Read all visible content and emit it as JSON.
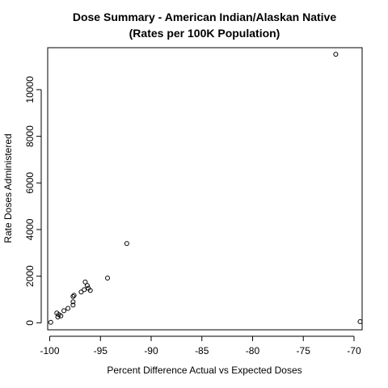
{
  "chart_data": {
    "type": "scatter",
    "title": "Dose Summary - American Indian/Alaskan Native",
    "subtitle": "(Rates per 100K Population)",
    "xlabel": "Percent Difference Actual vs Expected Doses",
    "ylabel": "Rate Doses Administered",
    "xlim": [
      -100.2,
      -69.2
    ],
    "ylim": [
      -300,
      11800
    ],
    "x_ticks": [
      -100,
      -95,
      -90,
      -85,
      -80,
      -75,
      -70
    ],
    "x_tick_labels": [
      "-100",
      "-95",
      "-90",
      "-85",
      "-80",
      "-75",
      "-70"
    ],
    "y_ticks": [
      0,
      2000,
      4000,
      6000,
      8000,
      10000
    ],
    "y_tick_labels": [
      "0",
      "2000",
      "4000",
      "6000",
      "8000",
      "10000"
    ],
    "grid": false,
    "legend": "none",
    "points": [
      {
        "x": -99.9,
        "y": 20
      },
      {
        "x": -99.3,
        "y": 420
      },
      {
        "x": -99.2,
        "y": 250
      },
      {
        "x": -99.1,
        "y": 350
      },
      {
        "x": -98.9,
        "y": 300
      },
      {
        "x": -98.6,
        "y": 520
      },
      {
        "x": -98.2,
        "y": 620
      },
      {
        "x": -97.7,
        "y": 760
      },
      {
        "x": -97.7,
        "y": 900
      },
      {
        "x": -97.7,
        "y": 1130
      },
      {
        "x": -97.6,
        "y": 1180
      },
      {
        "x": -96.9,
        "y": 1320
      },
      {
        "x": -96.6,
        "y": 1420
      },
      {
        "x": -96.5,
        "y": 1750
      },
      {
        "x": -96.3,
        "y": 1600
      },
      {
        "x": -96.2,
        "y": 1480
      },
      {
        "x": -96.0,
        "y": 1390
      },
      {
        "x": -94.3,
        "y": 1920
      },
      {
        "x": -92.4,
        "y": 3400
      },
      {
        "x": -71.8,
        "y": 11520
      },
      {
        "x": -69.4,
        "y": 50
      }
    ]
  }
}
